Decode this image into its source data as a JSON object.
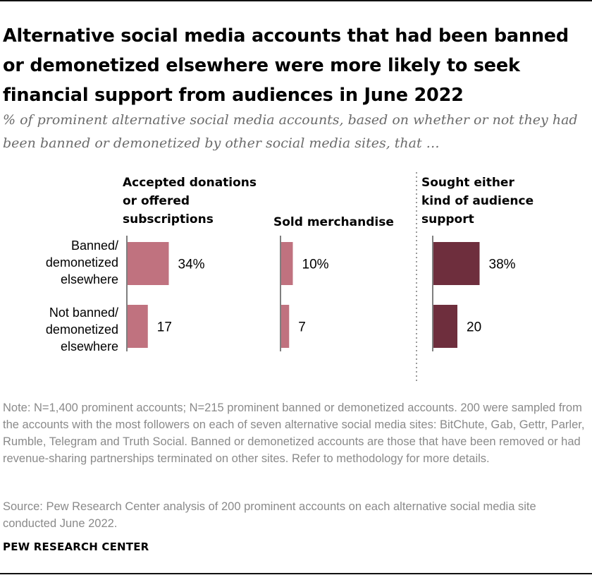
{
  "header": {
    "title": "Alternative social media accounts that had been banned or demonetized elsewhere were more likely to seek financial support from audiences in June 2022",
    "subtitle": "% of prominent alternative social media accounts, based on whether or not they had been banned or demonetized by other social media sites, that …"
  },
  "chart_data": {
    "type": "bar",
    "orientation": "horizontal",
    "categories": [
      "Banned/\ndemonetized\nelsewhere",
      "Not banned/\ndemonetized\nelsewhere"
    ],
    "series": [
      {
        "name": "Accepted donations\nor offered\nsubscriptions",
        "values": [
          34,
          17
        ],
        "labels": [
          "34%",
          "17"
        ],
        "color": "#c0727f"
      },
      {
        "name": "Sold merchandise",
        "values": [
          10,
          7
        ],
        "labels": [
          "10%",
          "7"
        ],
        "color": "#c0727f"
      },
      {
        "name": "Sought either\nkind of audience\nsupport",
        "values": [
          38,
          20
        ],
        "labels": [
          "38%",
          "20"
        ],
        "color": "#6e2e3d"
      }
    ],
    "xlim": [
      0,
      100
    ],
    "grid": false,
    "divider_before_series": 2
  },
  "footer": {
    "note": "Note: N=1,400 prominent accounts; N=215 prominent banned or demonetized accounts. 200 were sampled from the accounts with the most followers on each of seven alternative social media sites: BitChute, Gab, Gettr, Parler, Rumble, Telegram and Truth Social. Banned or demonetized accounts are those that have been removed or had revenue-sharing partnerships terminated on other sites. Refer to methodology for more details.",
    "source": "Source: Pew Research Center analysis of 200 prominent accounts on each alternative social media site conducted June 2022.",
    "brand": "PEW RESEARCH CENTER"
  },
  "colors": {
    "axis": "#7f7f7f",
    "divider": "#9a9a9a"
  }
}
